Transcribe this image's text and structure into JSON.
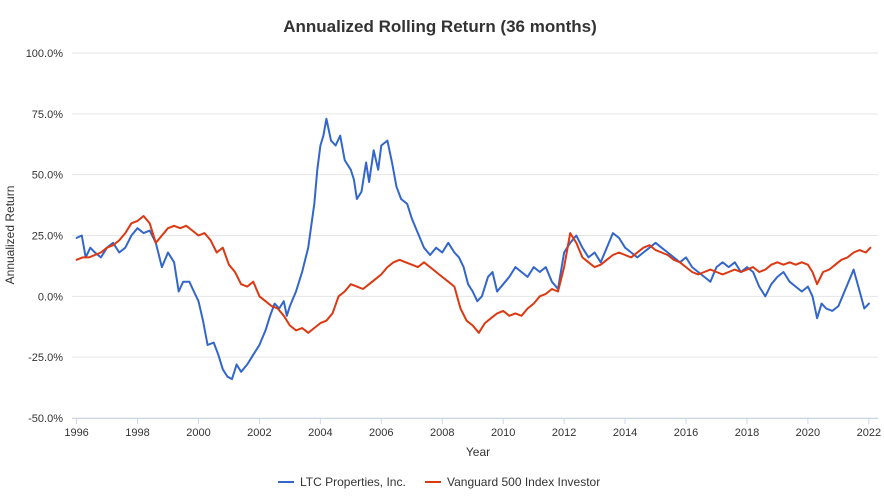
{
  "chart_data": {
    "type": "line",
    "title": "Annualized Rolling Return (36 months)",
    "xlabel": "Year",
    "ylabel": "Annualized Return",
    "xlim": [
      1995.85,
      2022.3
    ],
    "ylim": [
      -50,
      100
    ],
    "y_ticks": [
      -50,
      -25,
      0,
      25,
      50,
      75,
      100
    ],
    "y_tick_labels": [
      "-50.0%",
      "-25.0%",
      "0.0%",
      "25.0%",
      "50.0%",
      "75.0%",
      "100.0%"
    ],
    "x_ticks": [
      1996,
      1998,
      2000,
      2002,
      2004,
      2006,
      2008,
      2010,
      2012,
      2014,
      2016,
      2018,
      2020,
      2022
    ],
    "x_tick_labels": [
      "1996",
      "1998",
      "2000",
      "2002",
      "2004",
      "2006",
      "2008",
      "2010",
      "2012",
      "2014",
      "2016",
      "2018",
      "2020",
      "2022"
    ],
    "grid": true,
    "legend_position": "bottom",
    "series": [
      {
        "name": "LTC Properties, Inc.",
        "color": "#3366cc",
        "points": [
          [
            1996.0,
            24
          ],
          [
            1996.17,
            25
          ],
          [
            1996.3,
            16
          ],
          [
            1996.45,
            20
          ],
          [
            1996.6,
            18
          ],
          [
            1996.8,
            16
          ],
          [
            1997.0,
            20
          ],
          [
            1997.2,
            22
          ],
          [
            1997.4,
            18
          ],
          [
            1997.6,
            20
          ],
          [
            1997.8,
            25
          ],
          [
            1998.0,
            28
          ],
          [
            1998.2,
            26
          ],
          [
            1998.4,
            27
          ],
          [
            1998.6,
            22
          ],
          [
            1998.8,
            12
          ],
          [
            1999.0,
            18
          ],
          [
            1999.2,
            14
          ],
          [
            1999.35,
            2
          ],
          [
            1999.5,
            6
          ],
          [
            1999.7,
            6
          ],
          [
            1999.85,
            2
          ],
          [
            2000.0,
            -2
          ],
          [
            2000.15,
            -10
          ],
          [
            2000.3,
            -20
          ],
          [
            2000.5,
            -19
          ],
          [
            2000.65,
            -24
          ],
          [
            2000.8,
            -30
          ],
          [
            2000.95,
            -33
          ],
          [
            2001.1,
            -34
          ],
          [
            2001.25,
            -28
          ],
          [
            2001.4,
            -31
          ],
          [
            2001.6,
            -28
          ],
          [
            2001.8,
            -24
          ],
          [
            2002.0,
            -20
          ],
          [
            2002.2,
            -14
          ],
          [
            2002.35,
            -8
          ],
          [
            2002.5,
            -3
          ],
          [
            2002.65,
            -5
          ],
          [
            2002.8,
            -2
          ],
          [
            2002.9,
            -8
          ],
          [
            2003.0,
            -4
          ],
          [
            2003.2,
            2
          ],
          [
            2003.4,
            10
          ],
          [
            2003.6,
            20
          ],
          [
            2003.8,
            38
          ],
          [
            2003.9,
            52
          ],
          [
            2004.0,
            62
          ],
          [
            2004.1,
            66
          ],
          [
            2004.2,
            73
          ],
          [
            2004.35,
            64
          ],
          [
            2004.5,
            62
          ],
          [
            2004.65,
            66
          ],
          [
            2004.8,
            56
          ],
          [
            2005.0,
            52
          ],
          [
            2005.1,
            48
          ],
          [
            2005.2,
            40
          ],
          [
            2005.35,
            43
          ],
          [
            2005.5,
            55
          ],
          [
            2005.6,
            47
          ],
          [
            2005.75,
            60
          ],
          [
            2005.9,
            52
          ],
          [
            2006.0,
            62
          ],
          [
            2006.2,
            64
          ],
          [
            2006.35,
            55
          ],
          [
            2006.5,
            45
          ],
          [
            2006.65,
            40
          ],
          [
            2006.85,
            38
          ],
          [
            2007.0,
            32
          ],
          [
            2007.2,
            26
          ],
          [
            2007.4,
            20
          ],
          [
            2007.6,
            17
          ],
          [
            2007.8,
            20
          ],
          [
            2008.0,
            18
          ],
          [
            2008.2,
            22
          ],
          [
            2008.4,
            18
          ],
          [
            2008.55,
            16
          ],
          [
            2008.7,
            12
          ],
          [
            2008.85,
            5
          ],
          [
            2009.0,
            2
          ],
          [
            2009.15,
            -2
          ],
          [
            2009.3,
            0
          ],
          [
            2009.5,
            8
          ],
          [
            2009.65,
            10
          ],
          [
            2009.8,
            2
          ],
          [
            2010.0,
            5
          ],
          [
            2010.2,
            8
          ],
          [
            2010.4,
            12
          ],
          [
            2010.6,
            10
          ],
          [
            2010.8,
            8
          ],
          [
            2011.0,
            12
          ],
          [
            2011.2,
            10
          ],
          [
            2011.4,
            12
          ],
          [
            2011.6,
            6
          ],
          [
            2011.8,
            3
          ],
          [
            2012.0,
            18
          ],
          [
            2012.2,
            22
          ],
          [
            2012.4,
            25
          ],
          [
            2012.6,
            20
          ],
          [
            2012.8,
            16
          ],
          [
            2013.0,
            18
          ],
          [
            2013.2,
            14
          ],
          [
            2013.4,
            20
          ],
          [
            2013.6,
            26
          ],
          [
            2013.8,
            24
          ],
          [
            2014.0,
            20
          ],
          [
            2014.2,
            18
          ],
          [
            2014.4,
            16
          ],
          [
            2014.6,
            18
          ],
          [
            2014.8,
            20
          ],
          [
            2015.0,
            22
          ],
          [
            2015.2,
            20
          ],
          [
            2015.4,
            18
          ],
          [
            2015.6,
            16
          ],
          [
            2015.8,
            14
          ],
          [
            2016.0,
            16
          ],
          [
            2016.2,
            12
          ],
          [
            2016.4,
            10
          ],
          [
            2016.6,
            8
          ],
          [
            2016.8,
            6
          ],
          [
            2017.0,
            12
          ],
          [
            2017.2,
            14
          ],
          [
            2017.4,
            12
          ],
          [
            2017.6,
            14
          ],
          [
            2017.8,
            10
          ],
          [
            2018.0,
            12
          ],
          [
            2018.2,
            10
          ],
          [
            2018.4,
            4
          ],
          [
            2018.6,
            0
          ],
          [
            2018.8,
            5
          ],
          [
            2019.0,
            8
          ],
          [
            2019.2,
            10
          ],
          [
            2019.4,
            6
          ],
          [
            2019.6,
            4
          ],
          [
            2019.8,
            2
          ],
          [
            2020.0,
            4
          ],
          [
            2020.15,
            0
          ],
          [
            2020.3,
            -9
          ],
          [
            2020.45,
            -3
          ],
          [
            2020.6,
            -5
          ],
          [
            2020.8,
            -6
          ],
          [
            2021.0,
            -4
          ],
          [
            2021.2,
            2
          ],
          [
            2021.4,
            8
          ],
          [
            2021.5,
            11
          ],
          [
            2021.7,
            2
          ],
          [
            2021.85,
            -5
          ],
          [
            2022.0,
            -3
          ]
        ]
      },
      {
        "name": "Vanguard 500 Index Investor",
        "color": "#dc3912",
        "points": [
          [
            1996.0,
            15
          ],
          [
            1996.2,
            16
          ],
          [
            1996.4,
            16
          ],
          [
            1996.6,
            17
          ],
          [
            1996.8,
            18
          ],
          [
            1997.0,
            20
          ],
          [
            1997.2,
            21
          ],
          [
            1997.4,
            23
          ],
          [
            1997.6,
            26
          ],
          [
            1997.8,
            30
          ],
          [
            1998.0,
            31
          ],
          [
            1998.2,
            33
          ],
          [
            1998.4,
            30
          ],
          [
            1998.6,
            22
          ],
          [
            1998.8,
            25
          ],
          [
            1999.0,
            28
          ],
          [
            1999.2,
            29
          ],
          [
            1999.4,
            28
          ],
          [
            1999.6,
            29
          ],
          [
            1999.8,
            27
          ],
          [
            2000.0,
            25
          ],
          [
            2000.2,
            26
          ],
          [
            2000.4,
            23
          ],
          [
            2000.6,
            18
          ],
          [
            2000.8,
            20
          ],
          [
            2001.0,
            13
          ],
          [
            2001.2,
            10
          ],
          [
            2001.4,
            5
          ],
          [
            2001.6,
            4
          ],
          [
            2001.8,
            6
          ],
          [
            2002.0,
            0
          ],
          [
            2002.2,
            -2
          ],
          [
            2002.4,
            -4
          ],
          [
            2002.6,
            -5
          ],
          [
            2002.8,
            -8
          ],
          [
            2003.0,
            -12
          ],
          [
            2003.2,
            -14
          ],
          [
            2003.4,
            -13
          ],
          [
            2003.6,
            -15
          ],
          [
            2003.8,
            -13
          ],
          [
            2004.0,
            -11
          ],
          [
            2004.2,
            -10
          ],
          [
            2004.4,
            -7
          ],
          [
            2004.6,
            0
          ],
          [
            2004.8,
            2
          ],
          [
            2005.0,
            5
          ],
          [
            2005.2,
            4
          ],
          [
            2005.4,
            3
          ],
          [
            2005.6,
            5
          ],
          [
            2005.8,
            7
          ],
          [
            2006.0,
            9
          ],
          [
            2006.2,
            12
          ],
          [
            2006.4,
            14
          ],
          [
            2006.6,
            15
          ],
          [
            2006.8,
            14
          ],
          [
            2007.0,
            13
          ],
          [
            2007.2,
            12
          ],
          [
            2007.4,
            14
          ],
          [
            2007.6,
            12
          ],
          [
            2007.8,
            10
          ],
          [
            2008.0,
            8
          ],
          [
            2008.2,
            6
          ],
          [
            2008.4,
            4
          ],
          [
            2008.6,
            -5
          ],
          [
            2008.8,
            -10
          ],
          [
            2009.0,
            -12
          ],
          [
            2009.2,
            -15
          ],
          [
            2009.4,
            -11
          ],
          [
            2009.6,
            -9
          ],
          [
            2009.8,
            -7
          ],
          [
            2010.0,
            -6
          ],
          [
            2010.2,
            -8
          ],
          [
            2010.4,
            -7
          ],
          [
            2010.6,
            -8
          ],
          [
            2010.8,
            -5
          ],
          [
            2011.0,
            -3
          ],
          [
            2011.2,
            0
          ],
          [
            2011.4,
            1
          ],
          [
            2011.6,
            3
          ],
          [
            2011.8,
            2
          ],
          [
            2012.0,
            12
          ],
          [
            2012.2,
            26
          ],
          [
            2012.4,
            22
          ],
          [
            2012.6,
            16
          ],
          [
            2012.8,
            14
          ],
          [
            2013.0,
            12
          ],
          [
            2013.2,
            13
          ],
          [
            2013.4,
            15
          ],
          [
            2013.6,
            17
          ],
          [
            2013.8,
            18
          ],
          [
            2014.0,
            17
          ],
          [
            2014.2,
            16
          ],
          [
            2014.4,
            18
          ],
          [
            2014.6,
            20
          ],
          [
            2014.8,
            21
          ],
          [
            2015.0,
            19
          ],
          [
            2015.2,
            18
          ],
          [
            2015.4,
            17
          ],
          [
            2015.6,
            15
          ],
          [
            2015.8,
            14
          ],
          [
            2016.0,
            12
          ],
          [
            2016.2,
            10
          ],
          [
            2016.4,
            9
          ],
          [
            2016.6,
            10
          ],
          [
            2016.8,
            11
          ],
          [
            2017.0,
            10
          ],
          [
            2017.2,
            9
          ],
          [
            2017.4,
            10
          ],
          [
            2017.6,
            11
          ],
          [
            2017.8,
            10
          ],
          [
            2018.0,
            11
          ],
          [
            2018.2,
            12
          ],
          [
            2018.4,
            10
          ],
          [
            2018.6,
            11
          ],
          [
            2018.8,
            13
          ],
          [
            2019.0,
            14
          ],
          [
            2019.2,
            13
          ],
          [
            2019.4,
            14
          ],
          [
            2019.6,
            13
          ],
          [
            2019.8,
            14
          ],
          [
            2020.0,
            13
          ],
          [
            2020.15,
            10
          ],
          [
            2020.3,
            5
          ],
          [
            2020.5,
            10
          ],
          [
            2020.7,
            11
          ],
          [
            2020.9,
            13
          ],
          [
            2021.1,
            15
          ],
          [
            2021.3,
            16
          ],
          [
            2021.5,
            18
          ],
          [
            2021.7,
            19
          ],
          [
            2021.9,
            18
          ],
          [
            2022.05,
            20
          ]
        ]
      }
    ]
  }
}
